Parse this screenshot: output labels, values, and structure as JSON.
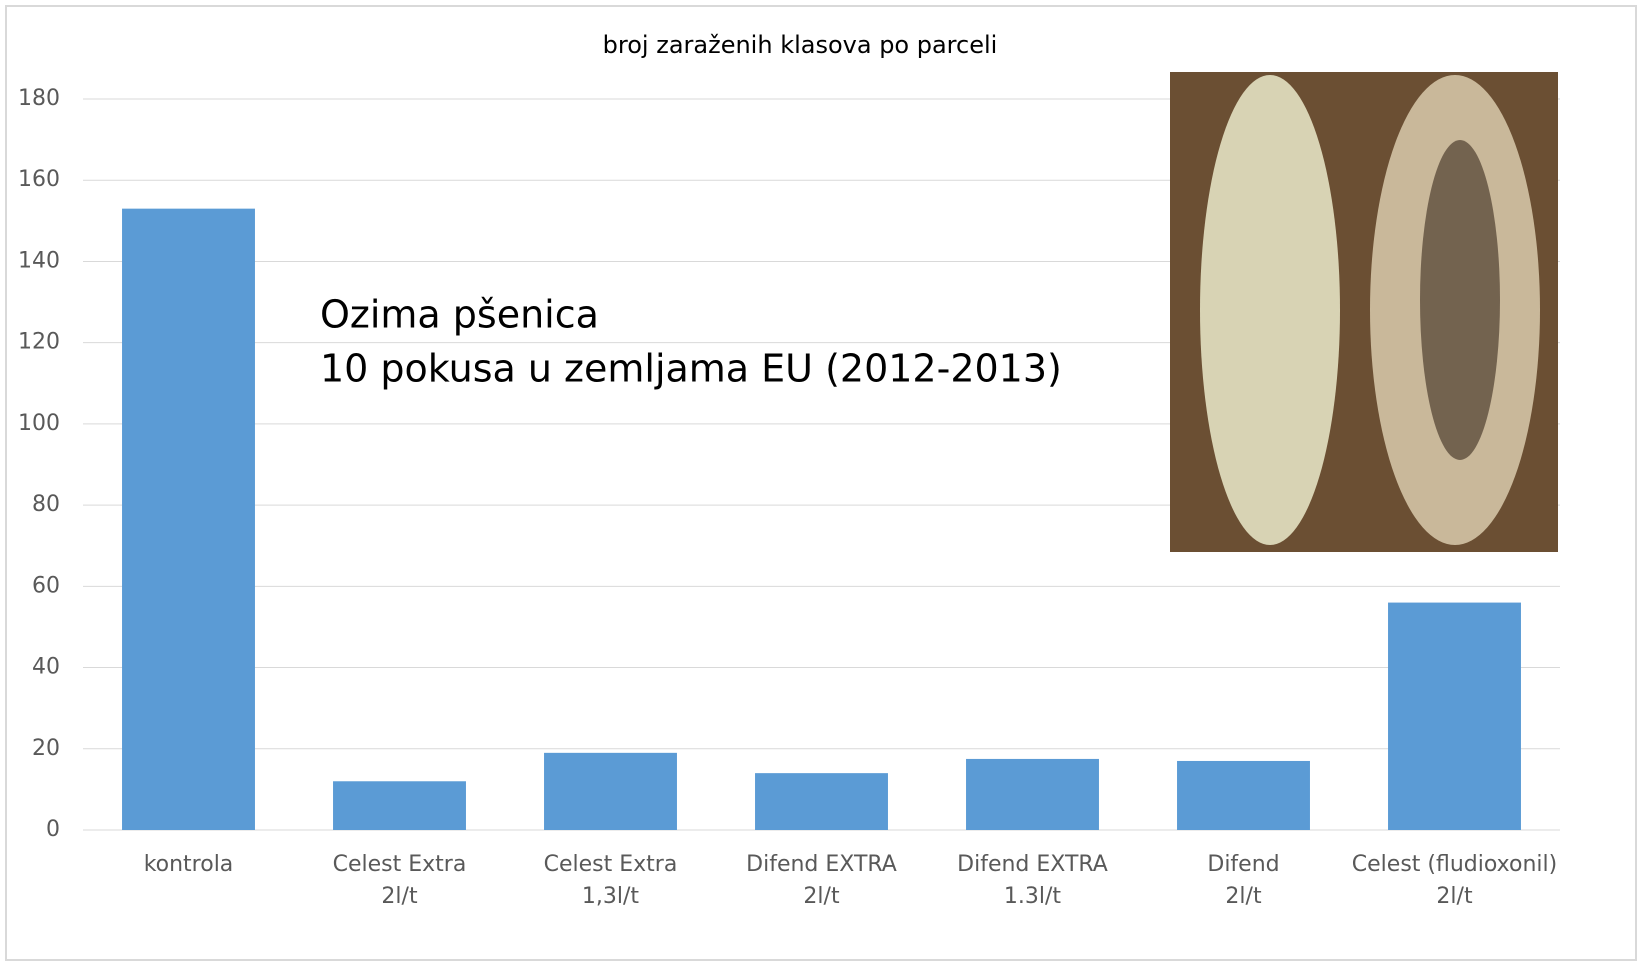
{
  "chart_data": {
    "type": "bar",
    "title": "broj zaraženih klasova po parceli",
    "annotation": [
      "Ozima pšenica",
      "10 pokusa u zemljama EU (2012-2013)"
    ],
    "categories": [
      [
        "kontrola"
      ],
      [
        "Celest Extra",
        "2l/t"
      ],
      [
        "Celest Extra",
        "1,3l/t"
      ],
      [
        "Difend EXTRA",
        "2l/t"
      ],
      [
        "Difend EXTRA",
        "1.3l/t"
      ],
      [
        "Difend",
        "2l/t"
      ],
      [
        "Celest (fludioxonil)",
        "2l/t"
      ]
    ],
    "values": [
      153,
      12,
      19,
      14,
      17.5,
      17,
      56
    ],
    "color": "#5b9bd5",
    "ylim": [
      0,
      180
    ],
    "yticks": [
      0,
      20,
      40,
      60,
      80,
      100,
      120,
      140,
      160,
      180
    ],
    "grid": true
  }
}
